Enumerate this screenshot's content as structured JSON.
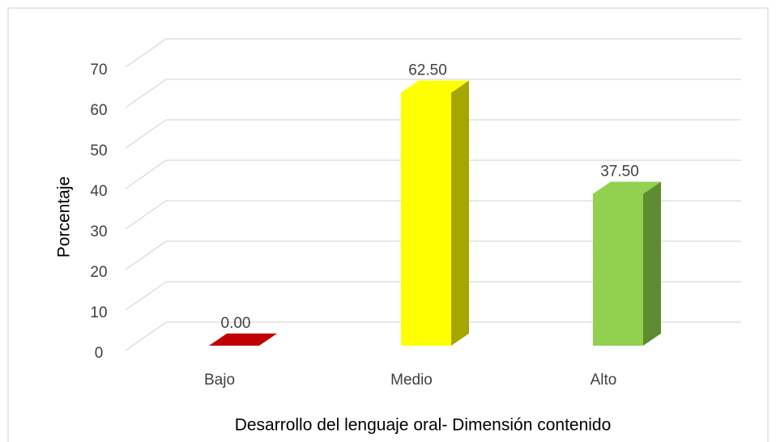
{
  "chart_data": {
    "type": "bar3d",
    "categories": [
      "Bajo",
      "Medio",
      "Alto"
    ],
    "values": [
      0,
      62.5,
      37.5
    ],
    "value_labels": [
      "0.00",
      "62.50",
      "37.50"
    ],
    "colors": [
      "#c00000",
      "#ffff00",
      "#92d050"
    ],
    "side_colors": [
      "#8a0000",
      "#a6a600",
      "#5e8c31"
    ],
    "ylim": [
      0,
      70
    ],
    "yticks": [
      0,
      10,
      20,
      30,
      40,
      50,
      60,
      70
    ],
    "grid": true,
    "y_label": "Porcentaje",
    "x_label": "Desarrollo del lenguaje oral- Dimensión contenido"
  }
}
